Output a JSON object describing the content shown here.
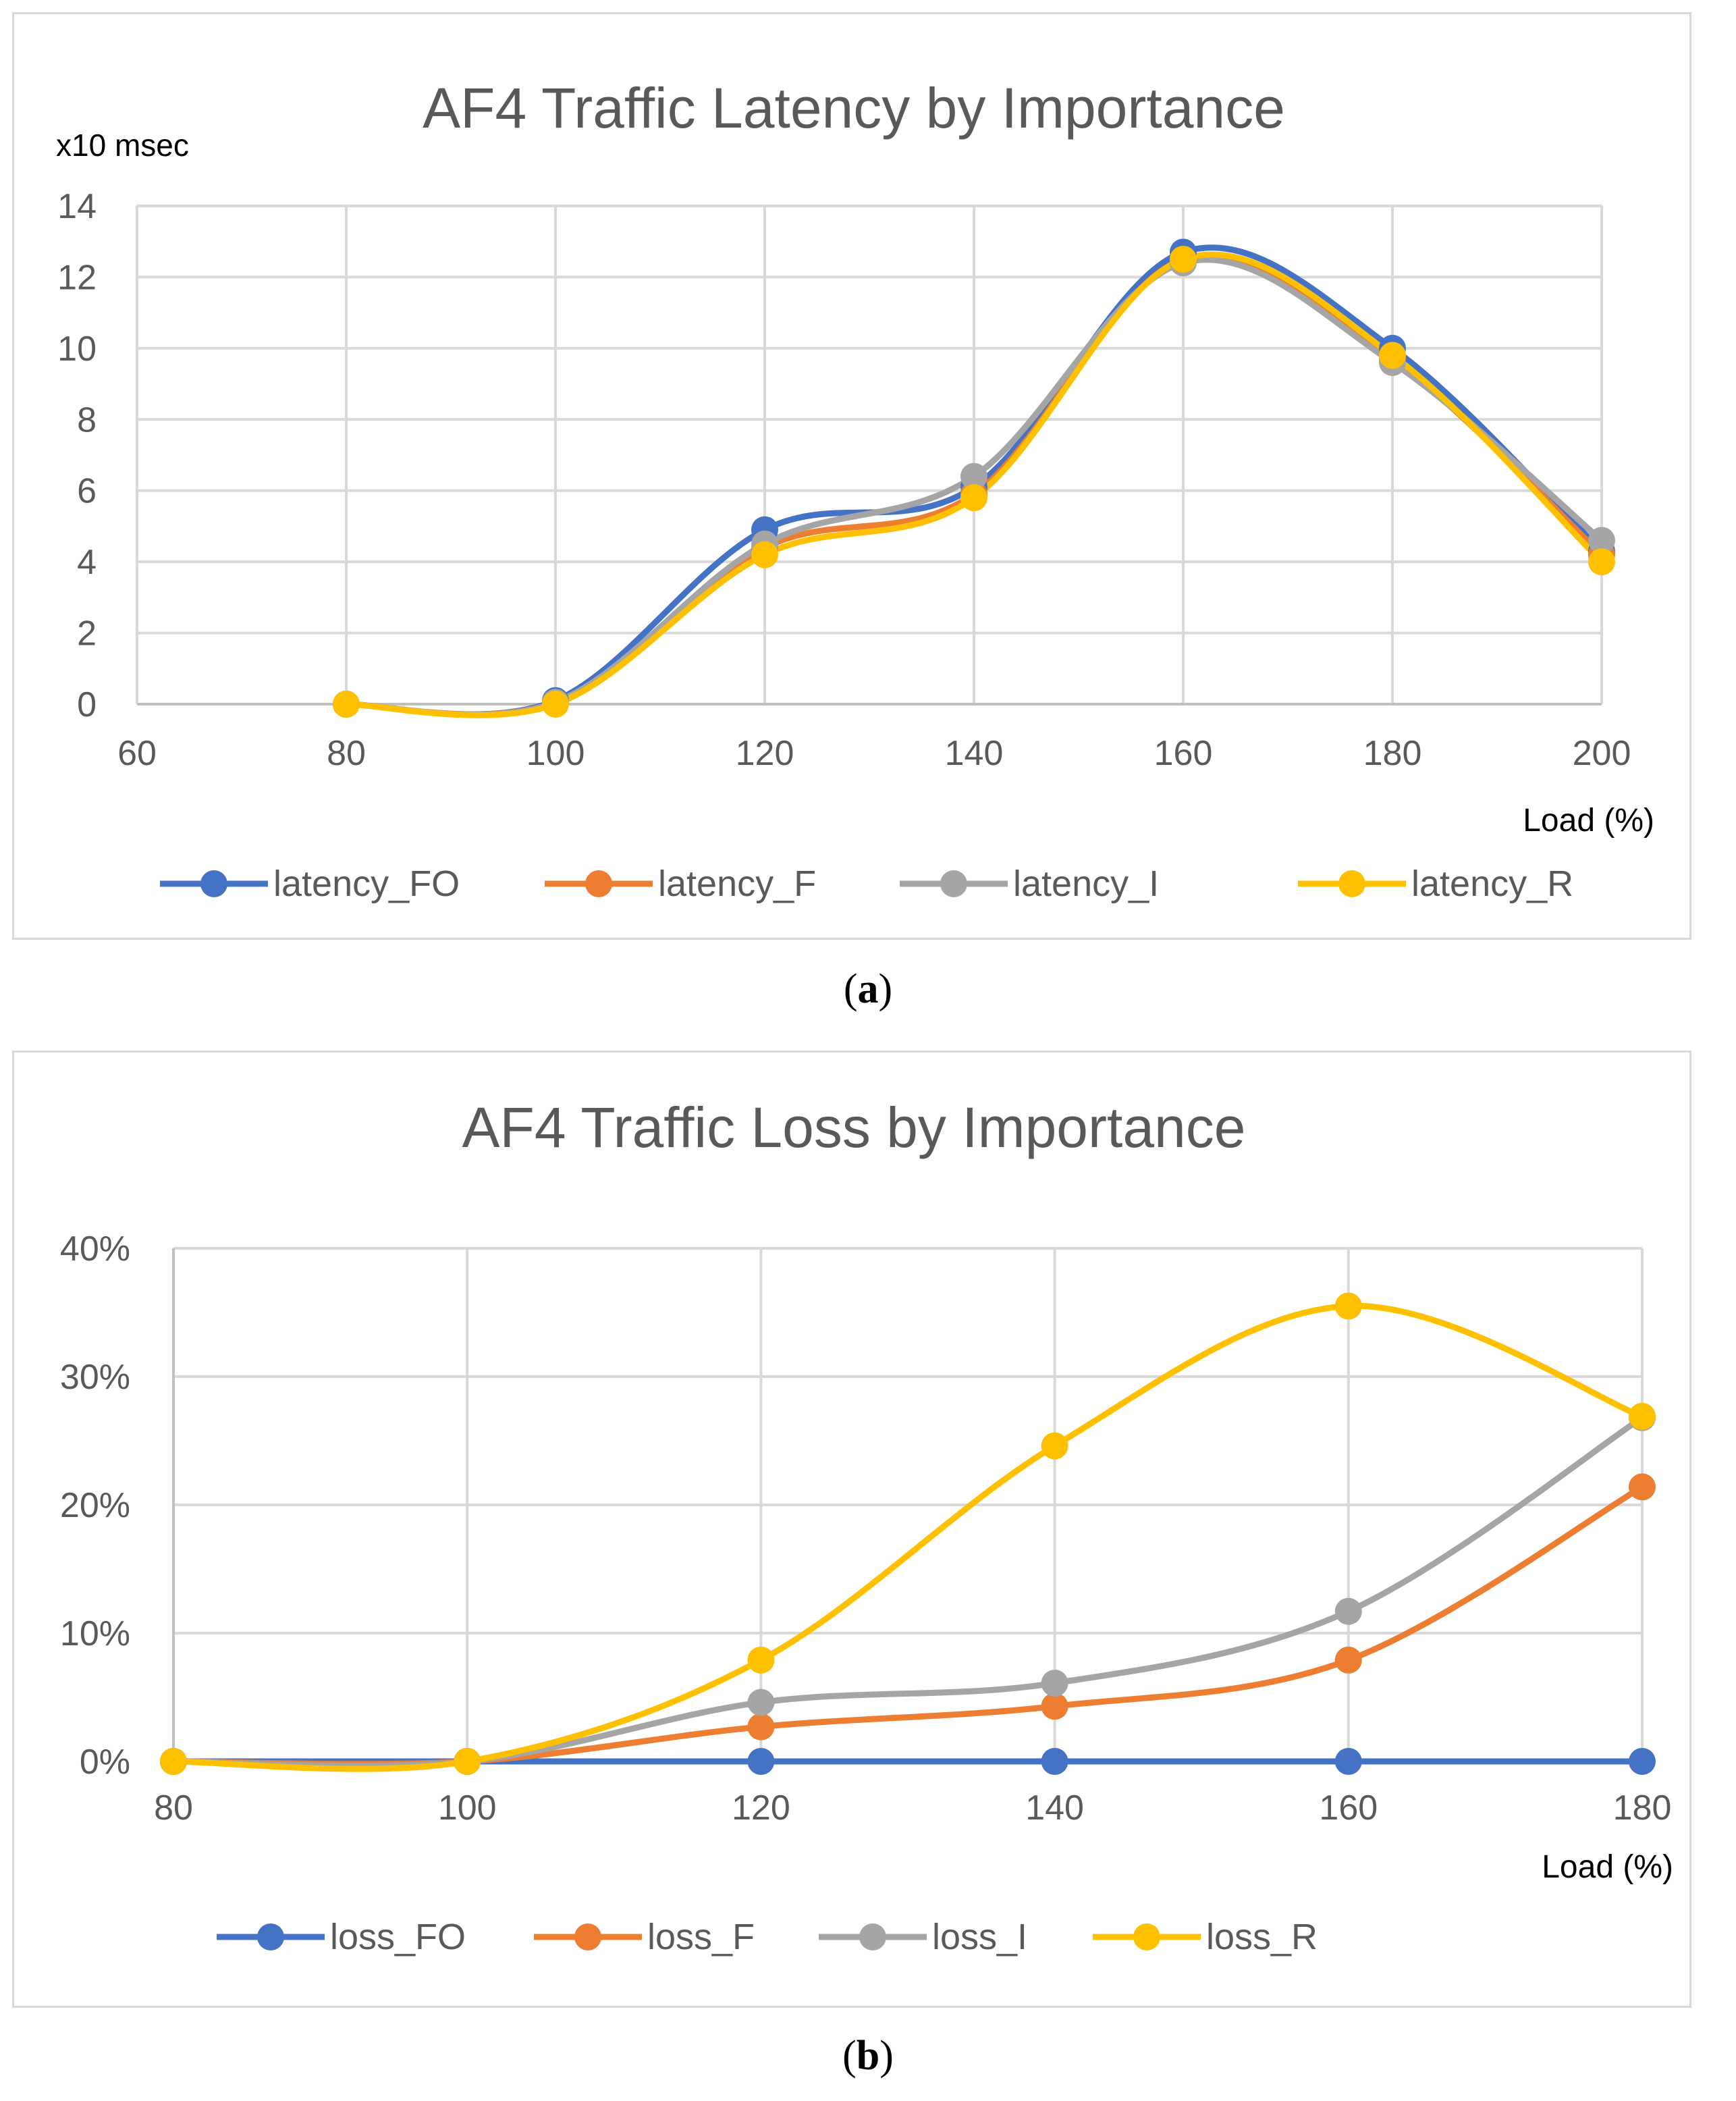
{
  "captions": {
    "a": "a",
    "b": "b"
  },
  "colors": {
    "FO": "#4472c4",
    "F": "#ed7d31",
    "I": "#a5a5a5",
    "R": "#ffc000",
    "grid": "#d9d9d9",
    "text": "#595959"
  },
  "chart_data": [
    {
      "type": "line",
      "title": "AF4 Traffic Latency by Importance",
      "unit_label": "x10 msec",
      "xlabel": "Load (%)",
      "xlim": [
        60,
        200
      ],
      "ylim": [
        0,
        14
      ],
      "x_ticks": [
        60,
        80,
        100,
        120,
        140,
        160,
        180,
        200
      ],
      "y_ticks": [
        0,
        2,
        4,
        6,
        8,
        10,
        12,
        14
      ],
      "x_tick_labels": [
        "60",
        "80",
        "100",
        "120",
        "140",
        "160",
        "180",
        "200"
      ],
      "y_tick_labels": [
        "0",
        "2",
        "4",
        "6",
        "8",
        "10",
        "12",
        "14"
      ],
      "grid": true,
      "legend": "bottom",
      "smooth": true,
      "x": [
        80,
        100,
        120,
        140,
        160,
        180,
        200
      ],
      "series": [
        {
          "name": "latency_FO",
          "color_key": "FO",
          "values": [
            0,
            0.1,
            4.9,
            6.1,
            12.7,
            10.0,
            4.3
          ]
        },
        {
          "name": "latency_F",
          "color_key": "F",
          "values": [
            0,
            0.05,
            4.4,
            5.9,
            12.5,
            9.7,
            4.2
          ]
        },
        {
          "name": "latency_I",
          "color_key": "I",
          "values": [
            0,
            0.05,
            4.5,
            6.4,
            12.4,
            9.6,
            4.6
          ]
        },
        {
          "name": "latency_R",
          "color_key": "R",
          "values": [
            0,
            0,
            4.2,
            5.8,
            12.5,
            9.8,
            4.0
          ]
        }
      ]
    },
    {
      "type": "line",
      "title": "AF4 Traffic Loss by Importance",
      "xlabel": "Load (%)",
      "xlim": [
        80,
        180
      ],
      "ylim": [
        0,
        40
      ],
      "x_ticks": [
        80,
        100,
        120,
        140,
        160,
        180
      ],
      "y_ticks": [
        0,
        10,
        20,
        30,
        40
      ],
      "x_tick_labels": [
        "80",
        "100",
        "120",
        "140",
        "160",
        "180"
      ],
      "y_tick_labels": [
        "0%",
        "10%",
        "20%",
        "30%",
        "40%"
      ],
      "grid": true,
      "legend": "bottom",
      "smooth": true,
      "x": [
        80,
        100,
        120,
        140,
        160,
        180
      ],
      "series": [
        {
          "name": "loss_FO",
          "color_key": "FO",
          "values": [
            0,
            0,
            0,
            0,
            0,
            0
          ]
        },
        {
          "name": "loss_F",
          "color_key": "F",
          "values": [
            0,
            0,
            2.7,
            4.3,
            7.9,
            21.4
          ]
        },
        {
          "name": "loss_I",
          "color_key": "I",
          "values": [
            0,
            0,
            4.6,
            6.1,
            11.7,
            26.8
          ]
        },
        {
          "name": "loss_R",
          "color_key": "R",
          "values": [
            0,
            0,
            7.9,
            24.6,
            35.5,
            26.9
          ]
        }
      ]
    }
  ]
}
